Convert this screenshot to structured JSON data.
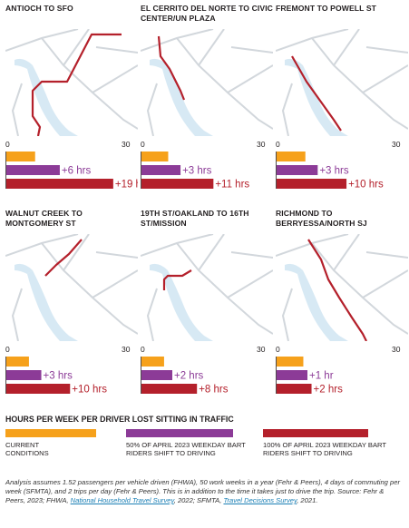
{
  "chart_data": {
    "type": "bar",
    "title": "HOURS PER WEEK PER DRIVER LOST SITTING IN TRAFFIC",
    "xlim": [
      0,
      30
    ],
    "axis_ticks": [
      "0",
      "30"
    ],
    "legend_placement": "bottom",
    "series_colors": [
      "#f6a11b",
      "#8c3b97",
      "#b4202b"
    ],
    "legend": [
      {
        "label": "CURRENT CONDITIONS",
        "color": "#f6a11b"
      },
      {
        "label": "50% OF APRIL 2023 WEEKDAY BART RIDERS SHIFT TO DRIVING",
        "color": "#8c3b97"
      },
      {
        "label": "100% OF APRIL 2023 WEEKDAY BART RIDERS SHIFT TO DRIVING",
        "color": "#b4202b"
      }
    ],
    "panels": [
      {
        "title": "ANTIOCH TO SFO",
        "values": [
          7,
          13,
          26
        ],
        "labels": [
          "",
          "+6 hrs",
          "+19 hrs"
        ]
      },
      {
        "title": "EL CERRITO DEL NORTE TO CIVIC CENTER/UN PLAZA",
        "values": [
          6.5,
          9.5,
          17.5
        ],
        "labels": [
          "",
          "+3 hrs",
          "+11 hrs"
        ]
      },
      {
        "title": "FREMONT TO POWELL ST",
        "values": [
          7,
          10,
          17
        ],
        "labels": [
          "",
          "+3 hrs",
          "+10 hrs"
        ]
      },
      {
        "title": "WALNUT CREEK TO MONTGOMERY ST",
        "values": [
          5.5,
          8.5,
          15.5
        ],
        "labels": [
          "",
          "+3 hrs",
          "+10 hrs"
        ]
      },
      {
        "title": "19TH ST/OAKLAND TO 16TH ST/MISSION",
        "values": [
          5.5,
          7.5,
          13.5
        ],
        "labels": [
          "",
          "+2 hrs",
          "+8 hrs"
        ]
      },
      {
        "title": "RICHMOND TO BERRYESSA/NORTH SJ",
        "values": [
          6.5,
          7.5,
          8.5
        ],
        "labels": [
          "",
          "+1 hr",
          "+2 hrs"
        ]
      }
    ]
  },
  "note": {
    "text1": "Analysis assumes 1.52 passengers per vehicle driven (FHWA), 50 work weeks in a year (Fehr & Peers), 4 days of commuting per week (SFMTA), and 2 trips per day (Fehr & Peers). This is in addition to the time it takes just to drive the trip. Source: Fehr & Peers, 2023; FHWA, ",
    "link1": "National Household Travel Survey",
    "text2": ", 2022; SFMTA, ",
    "link2": "Travel Decisions Survey",
    "text3": ", 2021."
  }
}
